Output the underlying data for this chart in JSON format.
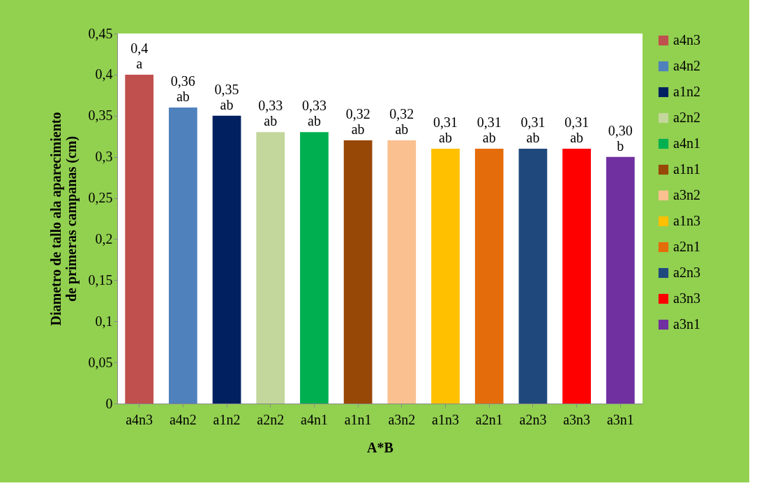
{
  "chart_data": {
    "type": "bar",
    "xlabel": "A*B",
    "ylabel": "Diametro de tallo ala aparecimiento de primeras campanas (cm)",
    "categories": [
      "a4n3",
      "a4n2",
      "a1n2",
      "a2n2",
      "a4n1",
      "a1n1",
      "a3n2",
      "a1n3",
      "a2n1",
      "a2n3",
      "a3n3",
      "a3n1"
    ],
    "series": [
      {
        "name": "a4n3",
        "color": "#c0504d",
        "values": [
          0.4,
          null,
          null,
          null,
          null,
          null,
          null,
          null,
          null,
          null,
          null,
          null
        ]
      },
      {
        "name": "a4n2",
        "color": "#4f81bd",
        "values": [
          null,
          0.36,
          null,
          null,
          null,
          null,
          null,
          null,
          null,
          null,
          null,
          null
        ]
      },
      {
        "name": "a1n2",
        "color": "#002060",
        "values": [
          null,
          null,
          0.35,
          null,
          null,
          null,
          null,
          null,
          null,
          null,
          null,
          null
        ]
      },
      {
        "name": "a2n2",
        "color": "#c3d69b",
        "values": [
          null,
          null,
          null,
          0.33,
          null,
          null,
          null,
          null,
          null,
          null,
          null,
          null
        ]
      },
      {
        "name": "a4n1",
        "color": "#00b050",
        "values": [
          null,
          null,
          null,
          null,
          0.33,
          null,
          null,
          null,
          null,
          null,
          null,
          null
        ]
      },
      {
        "name": "a1n1",
        "color": "#974706",
        "values": [
          null,
          null,
          null,
          null,
          null,
          0.32,
          null,
          null,
          null,
          null,
          null,
          null
        ]
      },
      {
        "name": "a3n2",
        "color": "#fac090",
        "values": [
          null,
          null,
          null,
          null,
          null,
          null,
          0.32,
          null,
          null,
          null,
          null,
          null
        ]
      },
      {
        "name": "a1n3",
        "color": "#ffc000",
        "values": [
          null,
          null,
          null,
          null,
          null,
          null,
          null,
          0.31,
          null,
          null,
          null,
          null
        ]
      },
      {
        "name": "a2n1",
        "color": "#e46c0a",
        "values": [
          null,
          null,
          null,
          null,
          null,
          null,
          null,
          null,
          0.31,
          null,
          null,
          null
        ]
      },
      {
        "name": "a2n3",
        "color": "#1f497d",
        "values": [
          null,
          null,
          null,
          null,
          null,
          null,
          null,
          null,
          null,
          0.31,
          null,
          null
        ]
      },
      {
        "name": "a3n3",
        "color": "#ff0000",
        "values": [
          null,
          null,
          null,
          null,
          null,
          null,
          null,
          null,
          null,
          null,
          0.31,
          null
        ]
      },
      {
        "name": "a3n1",
        "color": "#7030a0",
        "values": [
          null,
          null,
          null,
          null,
          null,
          null,
          null,
          null,
          null,
          null,
          null,
          0.3
        ]
      }
    ],
    "value_labels": [
      "0,4\na",
      "0,36\nab",
      "0,35\nab",
      "0,33\nab",
      "0,33\nab",
      "0,32\nab",
      "0,32\nab",
      "0,31\nab",
      "0,31\nab",
      "0,31\nab",
      "0,31\nab",
      "0,30\nb"
    ],
    "ylim": [
      0,
      0.45
    ],
    "yticks": [
      {
        "value": 0,
        "label": "0"
      },
      {
        "value": 0.05,
        "label": "0,05"
      },
      {
        "value": 0.1,
        "label": "0,1"
      },
      {
        "value": 0.15,
        "label": "0,15"
      },
      {
        "value": 0.2,
        "label": "0,2"
      },
      {
        "value": 0.25,
        "label": "0,25"
      },
      {
        "value": 0.3,
        "label": "0,3"
      },
      {
        "value": 0.35,
        "label": "0,35"
      },
      {
        "value": 0.4,
        "label": "0,4"
      },
      {
        "value": 0.45,
        "label": "0,45"
      }
    ],
    "grid": false,
    "legend": "right"
  }
}
